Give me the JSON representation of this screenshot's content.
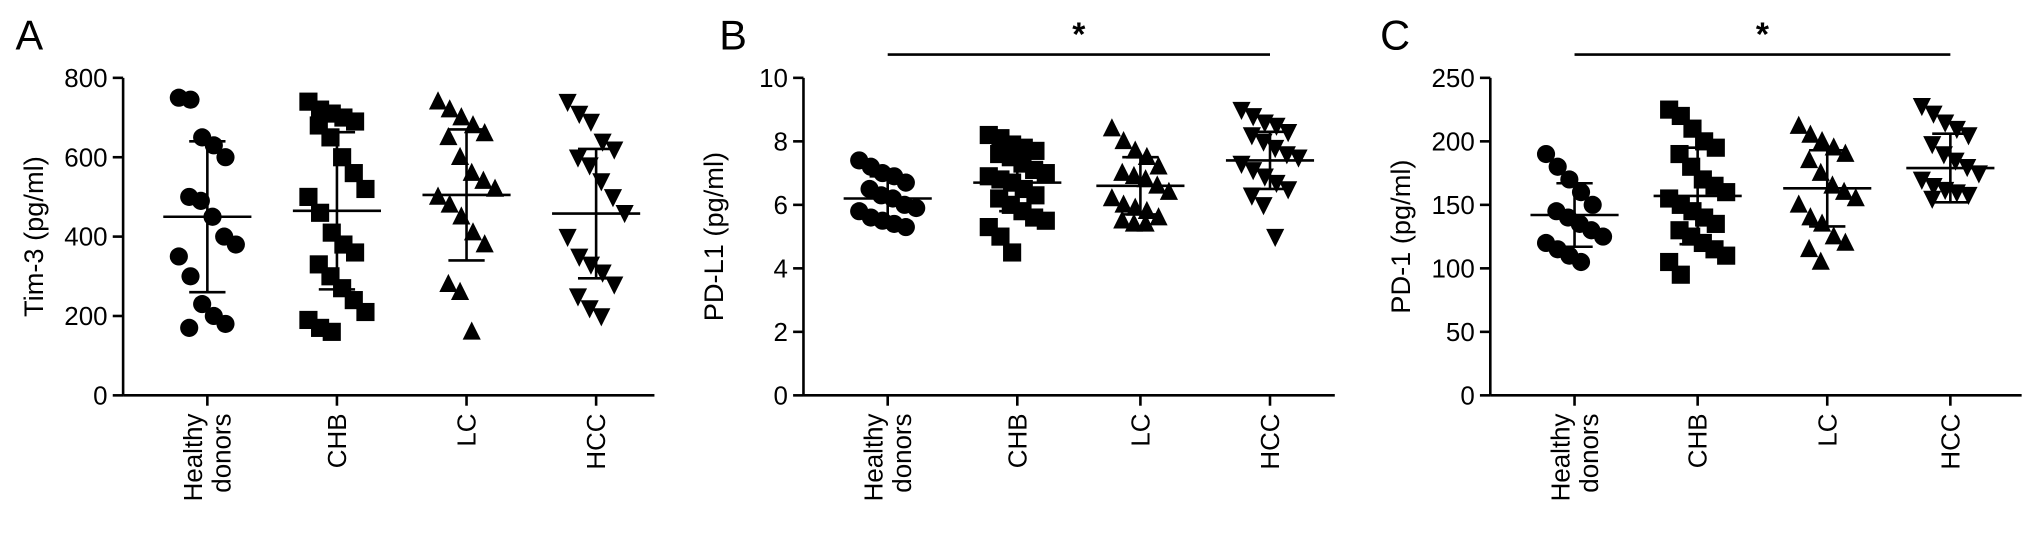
{
  "chart_data": [
    {
      "type": "dot",
      "panel_label": "A",
      "ylabel": "Tim-3 (pg/ml)",
      "categories": [
        "Healthy donors",
        "CHB",
        "LC",
        "HCC"
      ],
      "ylim": [
        0,
        800
      ],
      "yticks": [
        0,
        200,
        400,
        600,
        800
      ],
      "groups": [
        {
          "name": "Healthy donors",
          "marker": "circle",
          "values": [
            750,
            745,
            650,
            630,
            600,
            500,
            490,
            450,
            400,
            380,
            350,
            300,
            230,
            200,
            180,
            170
          ],
          "mean": 450,
          "sd": 190
        },
        {
          "name": "CHB",
          "marker": "square",
          "values": [
            740,
            720,
            710,
            700,
            690,
            680,
            650,
            600,
            560,
            520,
            500,
            460,
            410,
            380,
            360,
            330,
            300,
            270,
            240,
            210,
            190,
            170,
            160
          ],
          "mean": 465,
          "sd": 198
        },
        {
          "name": "LC",
          "marker": "triangle-up",
          "values": [
            740,
            720,
            700,
            680,
            660,
            650,
            600,
            560,
            540,
            520,
            500,
            480,
            450,
            410,
            380,
            280,
            260,
            160
          ],
          "mean": 505,
          "sd": 165
        },
        {
          "name": "HCC",
          "marker": "triangle-down",
          "values": [
            740,
            710,
            690,
            640,
            620,
            600,
            580,
            540,
            500,
            460,
            400,
            350,
            330,
            310,
            280,
            250,
            220,
            200
          ],
          "mean": 458,
          "sd": 163
        }
      ]
    },
    {
      "type": "dot",
      "panel_label": "B",
      "ylabel": "PD-L1 (pg/ml)",
      "categories": [
        "Healthy donors",
        "CHB",
        "LC",
        "HCC"
      ],
      "ylim": [
        0,
        10
      ],
      "yticks": [
        0,
        2,
        4,
        6,
        8,
        10
      ],
      "significance": {
        "label": "*",
        "between": [
          "Healthy donors",
          "HCC"
        ]
      },
      "groups": [
        {
          "name": "Healthy donors",
          "marker": "circle",
          "values": [
            7.4,
            7.2,
            7.0,
            6.9,
            6.7,
            6.5,
            6.3,
            6.2,
            6.0,
            5.9,
            5.8,
            5.6,
            5.5,
            5.4,
            5.3
          ],
          "mean": 6.2,
          "sd": 0.7
        },
        {
          "name": "CHB",
          "marker": "square",
          "values": [
            8.2,
            8.1,
            7.9,
            7.8,
            7.7,
            7.6,
            7.5,
            7.3,
            7.1,
            7.0,
            6.9,
            6.8,
            6.7,
            6.5,
            6.3,
            6.2,
            6.0,
            5.8,
            5.6,
            5.5,
            5.3,
            5.0,
            4.5
          ],
          "mean": 6.7,
          "sd": 0.9
        },
        {
          "name": "LC",
          "marker": "triangle-up",
          "values": [
            8.4,
            8.0,
            7.7,
            7.5,
            7.2,
            7.0,
            6.9,
            6.8,
            6.6,
            6.4,
            6.2,
            6.0,
            5.9,
            5.8,
            5.6,
            5.5,
            5.4,
            5.4
          ],
          "mean": 6.6,
          "sd": 0.9
        },
        {
          "name": "HCC",
          "marker": "triangle-down",
          "values": [
            9.0,
            8.8,
            8.6,
            8.5,
            8.3,
            8.2,
            8.0,
            7.8,
            7.6,
            7.5,
            7.3,
            7.1,
            6.9,
            6.7,
            6.5,
            6.3,
            6.0,
            5.0
          ],
          "mean": 7.4,
          "sd": 0.9
        }
      ]
    },
    {
      "type": "dot",
      "panel_label": "C",
      "ylabel": "PD-1 (pg/ml)",
      "categories": [
        "Healthy donors",
        "CHB",
        "LC",
        "HCC"
      ],
      "ylim": [
        0,
        250
      ],
      "yticks": [
        0,
        50,
        100,
        150,
        200,
        250
      ],
      "significance": {
        "label": "*",
        "between": [
          "Healthy donors",
          "HCC"
        ]
      },
      "groups": [
        {
          "name": "Healthy donors",
          "marker": "circle",
          "values": [
            190,
            180,
            170,
            160,
            150,
            145,
            140,
            135,
            130,
            125,
            120,
            115,
            110,
            105
          ],
          "mean": 142,
          "sd": 25
        },
        {
          "name": "CHB",
          "marker": "square",
          "values": [
            225,
            220,
            210,
            200,
            195,
            190,
            180,
            170,
            165,
            160,
            155,
            150,
            145,
            140,
            135,
            130,
            125,
            120,
            115,
            110,
            105,
            95
          ],
          "mean": 157,
          "sd": 38
        },
        {
          "name": "LC",
          "marker": "triangle-up",
          "values": [
            212,
            205,
            200,
            195,
            190,
            185,
            175,
            165,
            160,
            155,
            150,
            140,
            135,
            125,
            120,
            115,
            105
          ],
          "mean": 163,
          "sd": 30
        },
        {
          "name": "HCC",
          "marker": "triangle-down",
          "values": [
            228,
            222,
            215,
            210,
            205,
            198,
            190,
            185,
            180,
            175,
            170,
            165,
            162,
            160,
            158,
            155
          ],
          "mean": 179,
          "sd": 27
        }
      ]
    }
  ]
}
